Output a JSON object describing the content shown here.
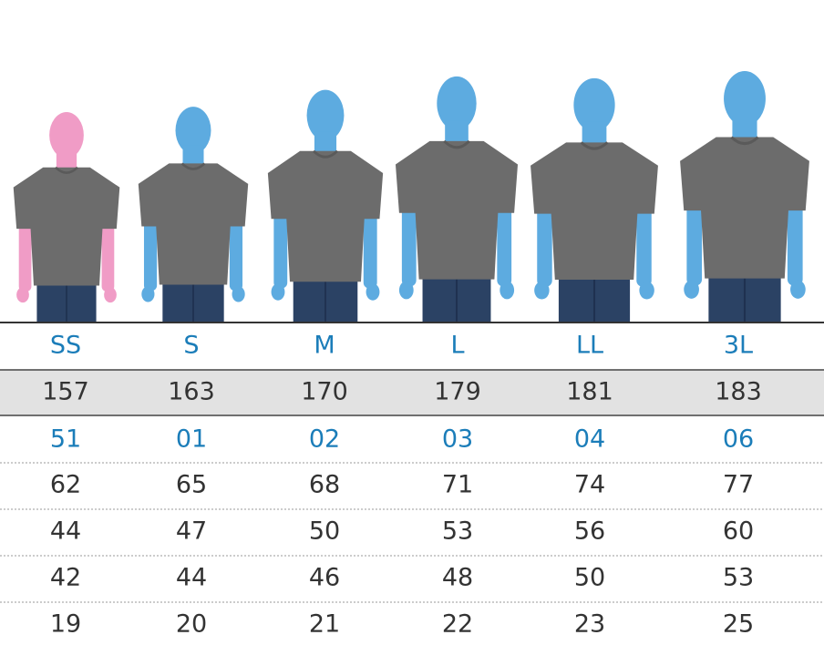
{
  "table": {
    "rows": [
      [
        "SS",
        "S",
        "M",
        "L",
        "LL",
        "3L"
      ],
      [
        157,
        163,
        170,
        179,
        181,
        183
      ],
      [
        "51",
        "01",
        "02",
        "03",
        "04",
        "06"
      ],
      [
        62,
        65,
        68,
        71,
        74,
        77
      ],
      [
        44,
        47,
        50,
        53,
        56,
        60
      ],
      [
        42,
        44,
        46,
        48,
        50,
        53
      ],
      [
        19,
        20,
        21,
        22,
        23,
        25
      ]
    ]
  }
}
